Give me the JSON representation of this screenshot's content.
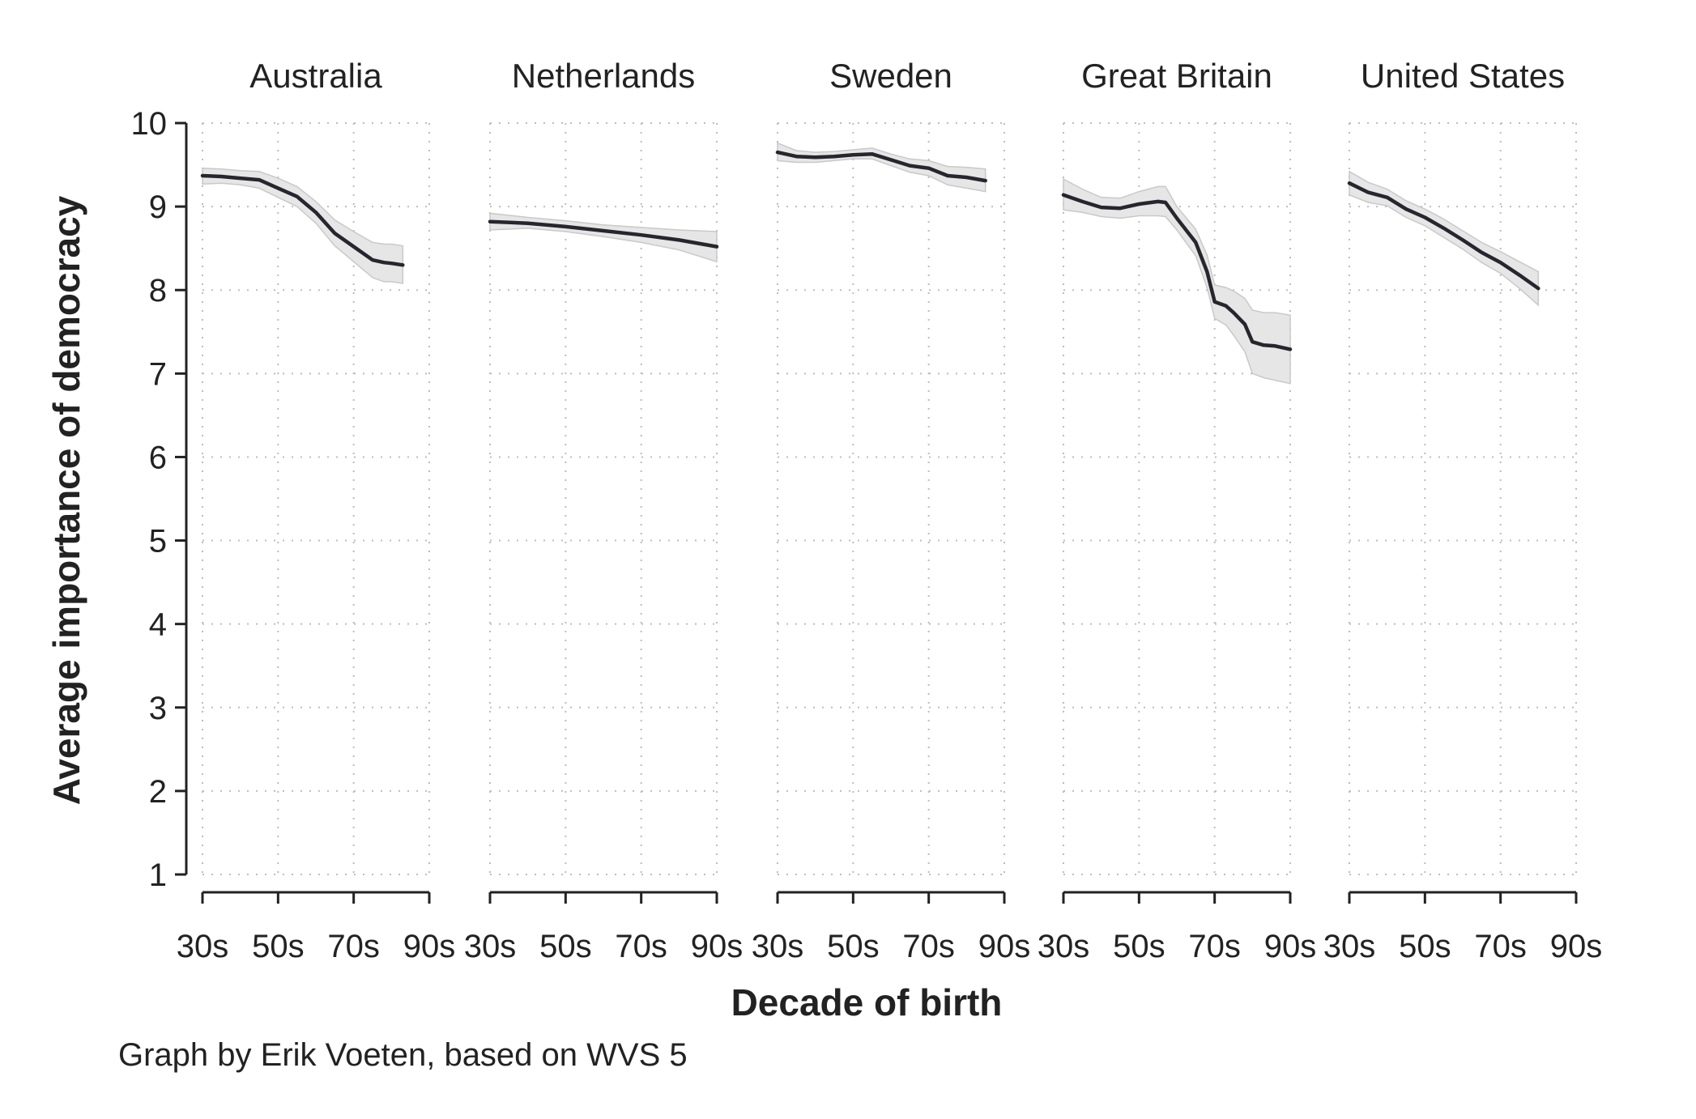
{
  "chart_data": {
    "type": "line",
    "xlabel": "Decade of birth",
    "ylabel": "Average importance of democracy",
    "caption": "Graph by Erik Voeten, based on WVS 5",
    "ylim": [
      1,
      10
    ],
    "yticks": [
      1,
      2,
      3,
      4,
      5,
      6,
      7,
      8,
      9,
      10
    ],
    "xlim": [
      1930,
      1990
    ],
    "xticks": [
      1930,
      1950,
      1970,
      1990
    ],
    "xtick_labels": [
      "30s",
      "50s",
      "70s",
      "90s"
    ],
    "grid": true,
    "panels": [
      {
        "title": "Australia",
        "x": [
          1930,
          1935,
          1940,
          1945,
          1950,
          1955,
          1960,
          1965,
          1970,
          1975,
          1978,
          1980,
          1983
        ],
        "y": [
          9.37,
          9.36,
          9.34,
          9.32,
          9.22,
          9.12,
          8.93,
          8.68,
          8.52,
          8.36,
          8.33,
          8.32,
          8.3
        ],
        "lower": [
          9.27,
          9.28,
          9.26,
          9.22,
          9.11,
          9.0,
          8.8,
          8.53,
          8.34,
          8.15,
          8.1,
          8.1,
          8.08
        ],
        "upper": [
          9.46,
          9.45,
          9.43,
          9.42,
          9.34,
          9.24,
          9.06,
          8.84,
          8.7,
          8.57,
          8.55,
          8.55,
          8.53
        ]
      },
      {
        "title": "Netherlands",
        "x": [
          1930,
          1940,
          1950,
          1960,
          1970,
          1980,
          1990
        ],
        "y": [
          8.82,
          8.8,
          8.76,
          8.71,
          8.66,
          8.6,
          8.52
        ],
        "lower": [
          8.72,
          8.74,
          8.7,
          8.64,
          8.57,
          8.48,
          8.34
        ],
        "upper": [
          8.92,
          8.87,
          8.83,
          8.78,
          8.75,
          8.72,
          8.7
        ]
      },
      {
        "title": "Sweden",
        "x": [
          1930,
          1935,
          1940,
          1945,
          1950,
          1955,
          1960,
          1965,
          1970,
          1975,
          1980,
          1985
        ],
        "y": [
          9.65,
          9.6,
          9.59,
          9.6,
          9.62,
          9.63,
          9.56,
          9.49,
          9.46,
          9.37,
          9.35,
          9.31
        ],
        "lower": [
          9.55,
          9.53,
          9.53,
          9.55,
          9.57,
          9.57,
          9.49,
          9.41,
          9.37,
          9.26,
          9.22,
          9.18
        ],
        "upper": [
          9.76,
          9.67,
          9.65,
          9.66,
          9.68,
          9.7,
          9.63,
          9.57,
          9.55,
          9.48,
          9.47,
          9.45
        ]
      },
      {
        "title": "Great Britain",
        "x": [
          1930,
          1935,
          1940,
          1945,
          1950,
          1955,
          1957,
          1960,
          1965,
          1968,
          1970,
          1973,
          1975,
          1978,
          1980,
          1983,
          1986,
          1990
        ],
        "y": [
          9.14,
          9.06,
          8.99,
          8.98,
          9.03,
          9.06,
          9.05,
          8.86,
          8.57,
          8.22,
          7.86,
          7.81,
          7.73,
          7.59,
          7.38,
          7.34,
          7.33,
          7.29
        ],
        "lower": [
          8.96,
          8.93,
          8.88,
          8.86,
          8.89,
          8.89,
          8.88,
          8.72,
          8.41,
          8.03,
          7.66,
          7.58,
          7.46,
          7.26,
          7.0,
          6.95,
          6.92,
          6.88
        ],
        "upper": [
          9.33,
          9.21,
          9.11,
          9.1,
          9.18,
          9.24,
          9.24,
          9.0,
          8.73,
          8.42,
          8.06,
          8.03,
          7.99,
          7.9,
          7.76,
          7.73,
          7.73,
          7.7
        ]
      },
      {
        "title": "United States",
        "x": [
          1930,
          1935,
          1940,
          1945,
          1950,
          1955,
          1960,
          1965,
          1970,
          1975,
          1980
        ],
        "y": [
          9.28,
          9.17,
          9.11,
          8.97,
          8.87,
          8.74,
          8.6,
          8.45,
          8.33,
          8.18,
          8.02
        ],
        "lower": [
          9.14,
          9.05,
          9.01,
          8.87,
          8.77,
          8.63,
          8.49,
          8.33,
          8.2,
          8.02,
          7.82
        ],
        "upper": [
          9.42,
          9.29,
          9.21,
          9.07,
          8.97,
          8.85,
          8.71,
          8.57,
          8.46,
          8.34,
          8.22
        ]
      }
    ]
  }
}
